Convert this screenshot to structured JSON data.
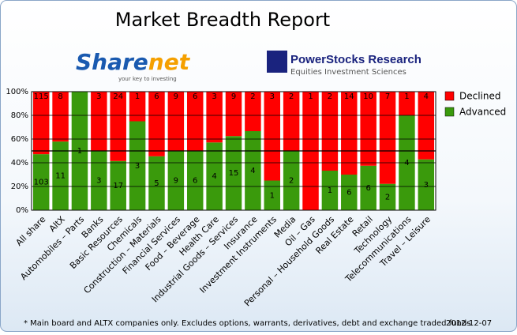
{
  "chart_data": {
    "type": "stacked-percent-bar",
    "title": "Market Breadth Report",
    "categories": [
      "All share",
      "AltX",
      "Automobiles – Parts",
      "Banks",
      "Basic Resources",
      "Chemicals",
      "Construction – Materials",
      "Financial Services",
      "Food – Beverage",
      "Health Care",
      "Industrial Goods – Services",
      "Insurance",
      "Investment Instruments",
      "Media",
      "Oil – Gas",
      "Personal – Household Goods",
      "Real Estate",
      "Retail",
      "Technology",
      "Telecommunications",
      "Travel – Leisure"
    ],
    "series": [
      {
        "name": "Advanced",
        "color": "#3a9a0c",
        "values": [
          103,
          11,
          1,
          3,
          17,
          3,
          5,
          9,
          6,
          4,
          15,
          4,
          1,
          2,
          0,
          1,
          6,
          6,
          2,
          4,
          3
        ]
      },
      {
        "name": "Declined",
        "color": "#ff0000",
        "values": [
          115,
          8,
          0,
          3,
          24,
          1,
          6,
          9,
          6,
          3,
          9,
          2,
          3,
          2,
          1,
          2,
          14,
          10,
          7,
          1,
          4
        ]
      }
    ],
    "ylim": [
      0,
      100
    ],
    "yticks": [
      {
        "value": 0,
        "label": "0%"
      },
      {
        "value": 20,
        "label": "20%"
      },
      {
        "value": 40,
        "label": "40%"
      },
      {
        "value": 60,
        "label": "60%"
      },
      {
        "value": 80,
        "label": "80%"
      },
      {
        "value": 100,
        "label": "100%"
      }
    ],
    "reference_line": 50,
    "grid": true,
    "legend": "right"
  },
  "logos": {
    "sharenet": {
      "name_a": "Share",
      "name_b": "net",
      "tagline": "your key to investing"
    },
    "powerstocks": {
      "name": "PowerStocks  Research",
      "tagline": "Equities Investment Sciences"
    }
  },
  "footnote": "* Main board and ALTX companies only. Excludes options, warrants, derivatives, debt and exchange traded funds",
  "date": "2012-12-07"
}
